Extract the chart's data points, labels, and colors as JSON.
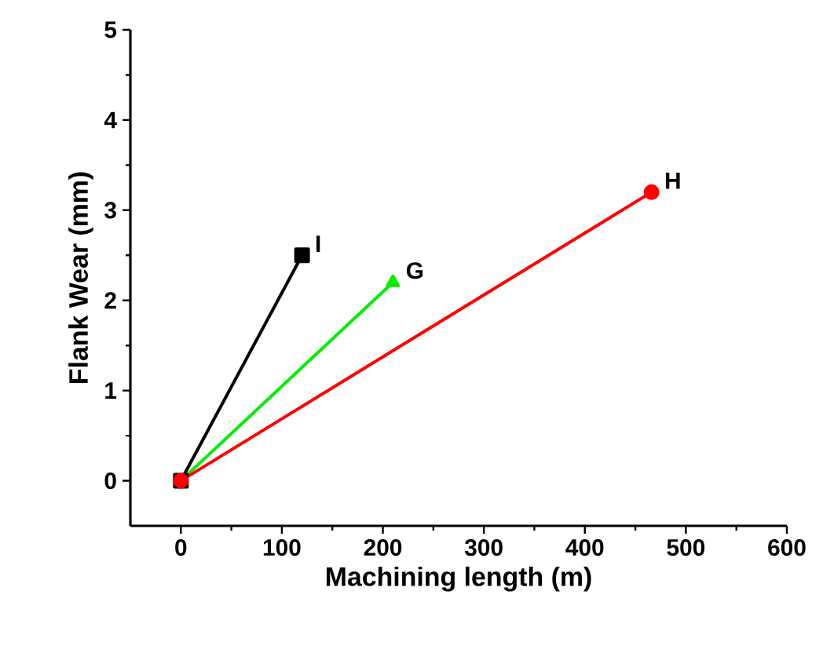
{
  "chart_data": {
    "type": "line",
    "xlabel": "Machining length (m)",
    "ylabel": "Flank Wear (mm)",
    "xlim": [
      -50,
      600
    ],
    "ylim": [
      -0.5,
      5
    ],
    "xticks": [
      0,
      100,
      200,
      300,
      400,
      500,
      600
    ],
    "yticks": [
      0,
      1,
      2,
      3,
      4,
      5
    ],
    "grid": false,
    "series": [
      {
        "name": "I",
        "color": "#000000",
        "marker": "square",
        "x": [
          0,
          120
        ],
        "values": [
          0,
          2.5
        ]
      },
      {
        "name": "G",
        "color": "#00ee00",
        "marker": "triangle",
        "x": [
          0,
          210
        ],
        "values": [
          0,
          2.2
        ]
      },
      {
        "name": "H",
        "color": "#ff0000",
        "marker": "circle",
        "x": [
          0,
          466
        ],
        "values": [
          0,
          3.2
        ]
      }
    ]
  }
}
